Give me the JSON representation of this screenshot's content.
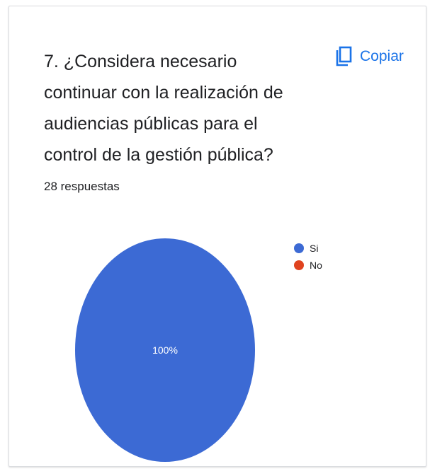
{
  "card": {
    "title": "7. ¿Considera necesario continuar con la realización de audiencias públicas para el control de la gestión pública?",
    "copy_label": "Copiar",
    "copy_icon": "copy-icon",
    "response_count": "28 respuestas"
  },
  "colors": {
    "accent": "#1a73e8",
    "si": "#3c6ad4",
    "no": "#e0431f"
  },
  "chart_data": {
    "type": "pie",
    "categories": [
      "Si",
      "No"
    ],
    "values": [
      100,
      0
    ],
    "data_labels": [
      "100%",
      ""
    ],
    "colors": [
      "#3c6ad4",
      "#e0431f"
    ],
    "legend_position": "right"
  }
}
